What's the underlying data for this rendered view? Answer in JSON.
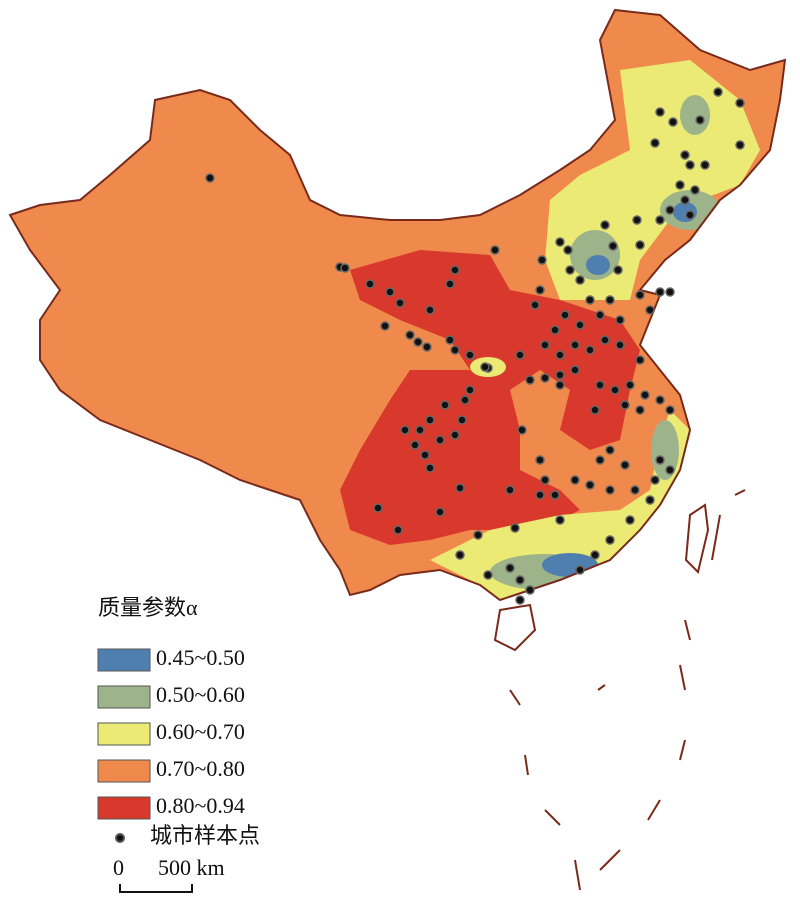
{
  "legend": {
    "title": "质量参数α",
    "items": [
      {
        "label": "0.45~0.50",
        "color": "#4f7fae"
      },
      {
        "label": "0.50~0.60",
        "color": "#9db38a"
      },
      {
        "label": "0.60~0.70",
        "color": "#eaea74"
      },
      {
        "label": "0.70~0.80",
        "color": "#ef8a4c"
      },
      {
        "label": "0.80~0.94",
        "color": "#d8392c"
      }
    ],
    "points_label": "城市样本点"
  },
  "scale_bar": {
    "start": "0",
    "end": "500 km"
  }
}
